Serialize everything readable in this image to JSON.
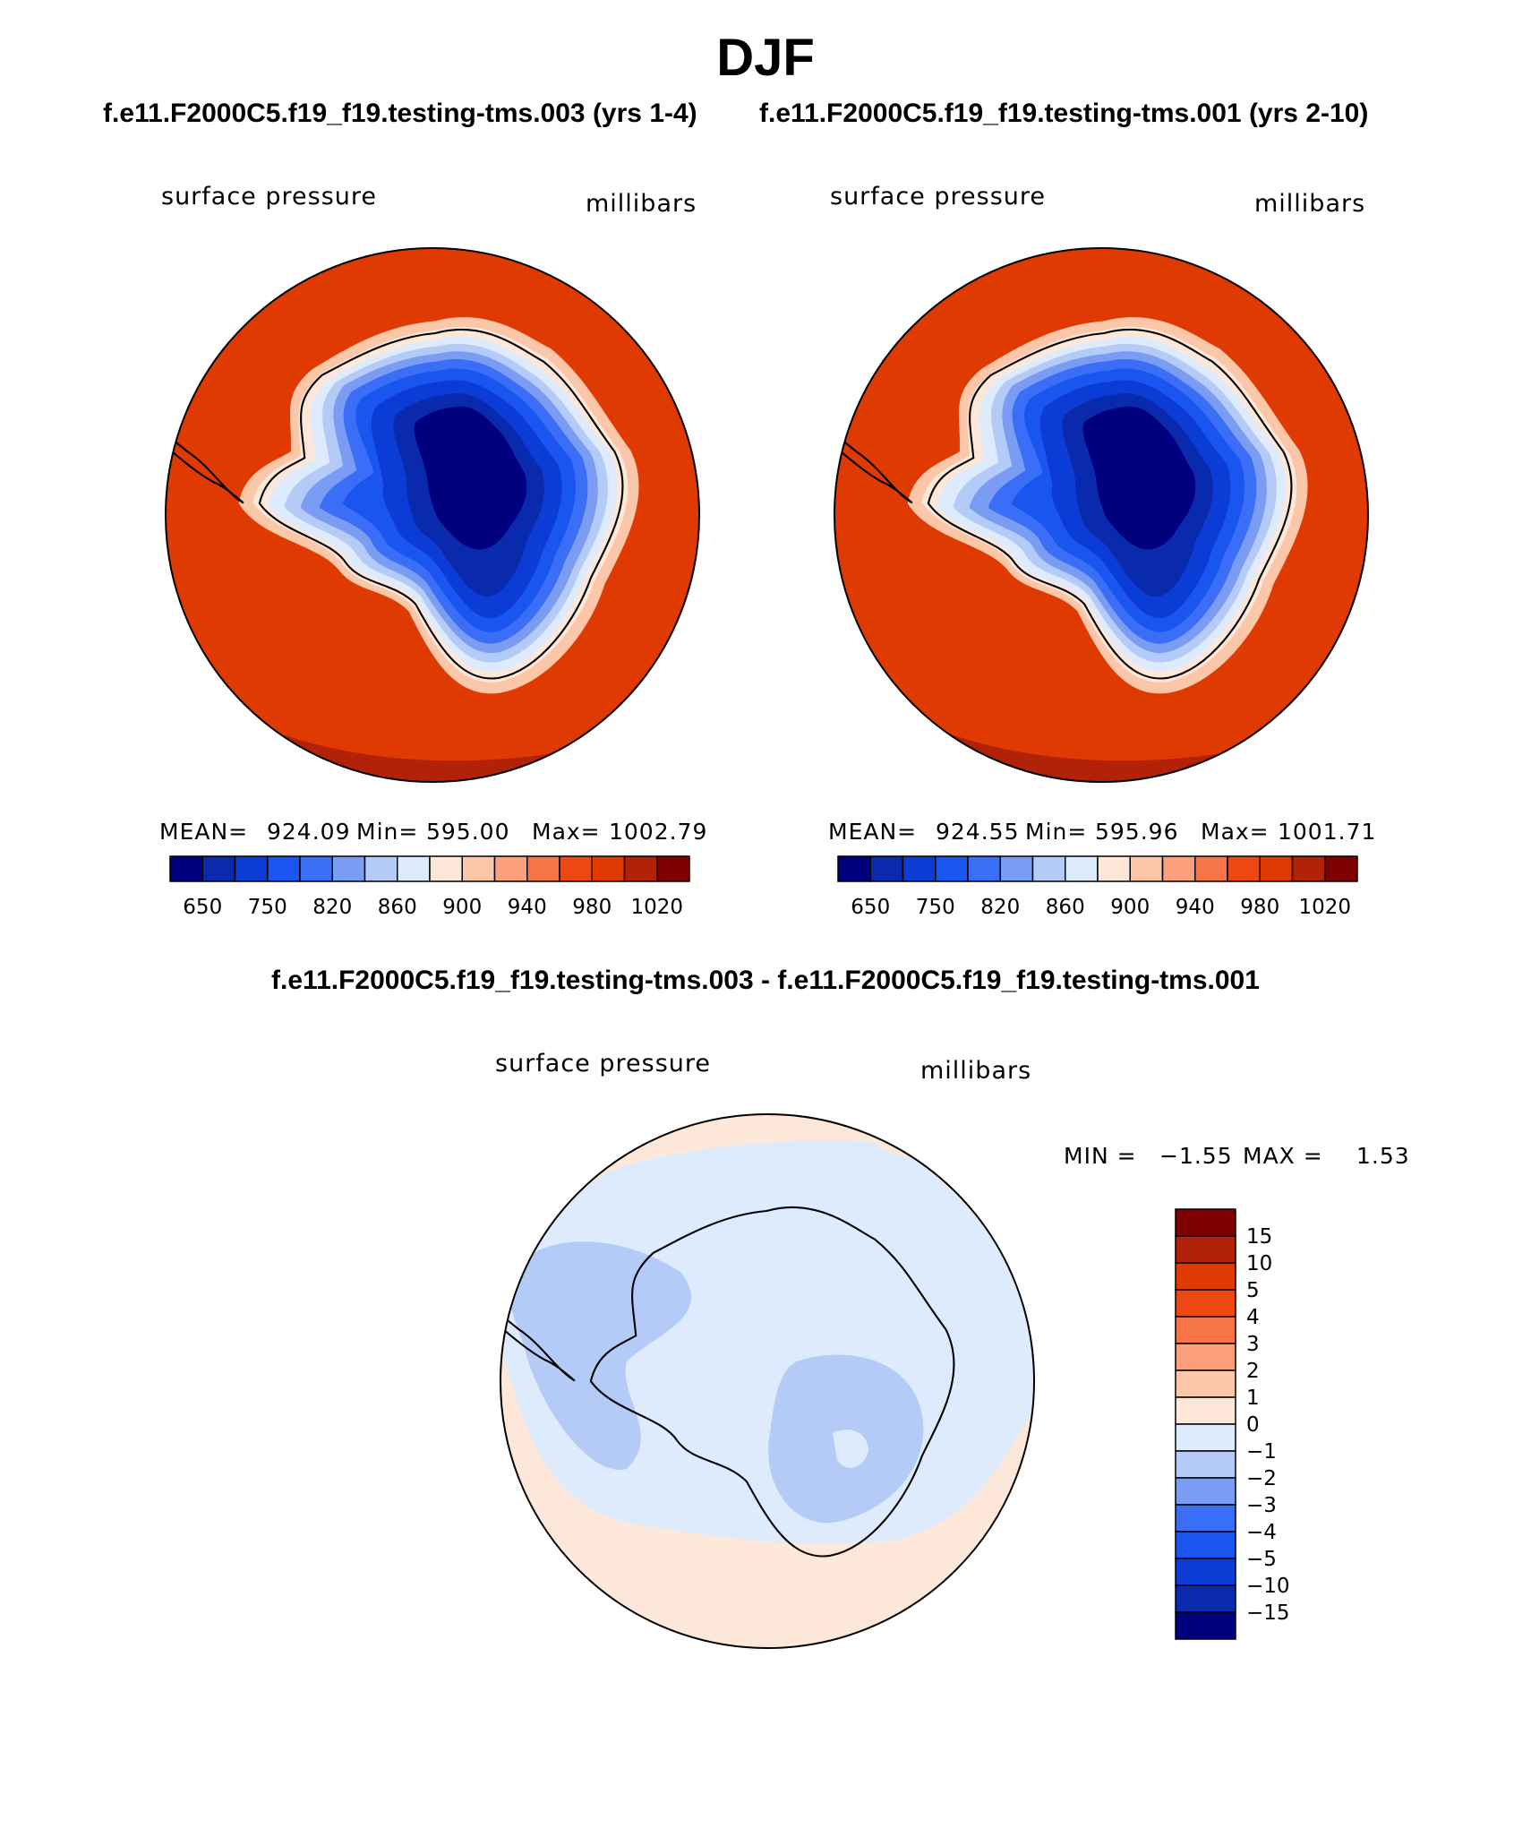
{
  "header": {
    "season": "DJF",
    "case_left": "f.e11.F2000C5.f19_f19.testing-tms.003 (yrs 1-4)",
    "case_right": "f.e11.F2000C5.f19_f19.testing-tms.001 (yrs 2-10)",
    "diff_title": "f.e11.F2000C5.f19_f19.testing-tms.003 - f.e11.F2000C5.f19_f19.testing-tms.001"
  },
  "chart_data": [
    {
      "type": "heatmap",
      "panel": "test-case",
      "projection": "south-polar-stereographic",
      "variable": "surface pressure",
      "units": "millibars",
      "stats": {
        "mean_label": "MEAN=",
        "mean": "924.09",
        "min_label": "Min=",
        "min": "595.00",
        "max_label": "Max=",
        "max": "1002.79"
      },
      "colorbar": {
        "levels": [
          650,
          700,
          750,
          800,
          820,
          840,
          860,
          880,
          900,
          920,
          940,
          960,
          980,
          1000,
          1020
        ],
        "tick_labels": [
          "650",
          "750",
          "820",
          "860",
          "900",
          "940",
          "980",
          "1020"
        ],
        "colors": [
          "#00007f",
          "#0a2aae",
          "#0c3cd6",
          "#1a55f0",
          "#3a6ef6",
          "#7a9cf3",
          "#b4cbf8",
          "#deebfd",
          "#fde7d9",
          "#fcc7a9",
          "#fba07a",
          "#f77447",
          "#ed4714",
          "#e03a03",
          "#b22208",
          "#7e0000"
        ]
      }
    },
    {
      "type": "heatmap",
      "panel": "control-case",
      "projection": "south-polar-stereographic",
      "variable": "surface pressure",
      "units": "millibars",
      "stats": {
        "mean_label": "MEAN=",
        "mean": "924.55",
        "min_label": "Min=",
        "min": "595.96",
        "max_label": "Max=",
        "max": "1001.71"
      },
      "colorbar": {
        "levels": [
          650,
          700,
          750,
          800,
          820,
          840,
          860,
          880,
          900,
          920,
          940,
          960,
          980,
          1000,
          1020
        ],
        "tick_labels": [
          "650",
          "750",
          "820",
          "860",
          "900",
          "940",
          "980",
          "1020"
        ],
        "colors": [
          "#00007f",
          "#0a2aae",
          "#0c3cd6",
          "#1a55f0",
          "#3a6ef6",
          "#7a9cf3",
          "#b4cbf8",
          "#deebfd",
          "#fde7d9",
          "#fcc7a9",
          "#fba07a",
          "#f77447",
          "#ed4714",
          "#e03a03",
          "#b22208",
          "#7e0000"
        ]
      }
    },
    {
      "type": "heatmap",
      "panel": "difference",
      "projection": "south-polar-stereographic",
      "variable": "surface pressure",
      "units": "millibars",
      "stats": {
        "min_label": "MIN =",
        "min": "−1.55",
        "max_label": "MAX =",
        "max": "1.53"
      },
      "colorbar": {
        "levels": [
          15,
          10,
          5,
          4,
          3,
          2,
          1,
          0,
          -1,
          -2,
          -3,
          -4,
          -5,
          -10,
          -15
        ],
        "tick_labels": [
          "15",
          "10",
          "5",
          "4",
          "3",
          "2",
          "1",
          "0",
          "−1",
          "−2",
          "−3",
          "−4",
          "−5",
          "−10",
          "−15"
        ],
        "colors": [
          "#7e0000",
          "#b22208",
          "#e03a03",
          "#ed4714",
          "#f77447",
          "#fba07a",
          "#fcc7a9",
          "#fde7d9",
          "#deebfd",
          "#b4cbf8",
          "#7a9cf3",
          "#3a6ef6",
          "#1a55f0",
          "#0c3cd6",
          "#0a2aae",
          "#00007f"
        ]
      }
    }
  ],
  "map_fill_colors": {
    "ocean": "#e03a03",
    "diff_ocean_pos": "#fde7d9",
    "diff_ocean_pos2": "#fcc7a9",
    "diff_neg1": "#deebfd",
    "diff_neg2": "#b4cbf8"
  }
}
